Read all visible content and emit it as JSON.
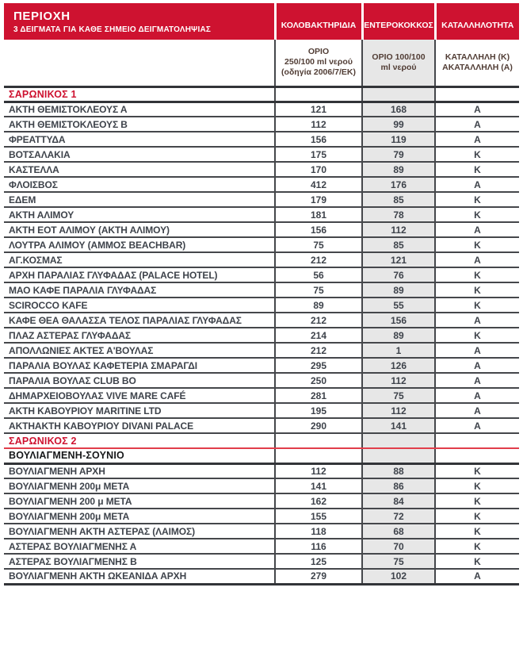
{
  "header": {
    "title": "ΠΕΡΙΟΧΗ",
    "subtitle": "3 ΔΕΙΓΜΑΤΑ ΓΙΑ ΚΑΘΕ ΣΗΜΕΙΟ ΔΕΙΓΜΑΤΟΛΗΨΙΑΣ",
    "columns": [
      "ΚΟΛΟΒΑΚΤΗΡΙΔΙΑ",
      "ΕΝΤΕΡΟΚΟΚΚΟΣ",
      "ΚΑΤΑΛΛΗΛΟΤΗΤΑ"
    ],
    "limits": {
      "coliform": [
        "ΟΡΙΟ",
        "250/100 ml νερού",
        "(οδηγία 2006/7/ΕΚ)"
      ],
      "enterococcus": [
        "ΟΡΙΟ 100/100",
        "ml νερού"
      ],
      "suitability": [
        "ΚΑΤΑΛΛΗΛΗ (Κ)",
        "ΑΚΑΤΑΛΛΗΛΗ (Α)"
      ]
    }
  },
  "colors": {
    "header_red": "#ce1230",
    "section_red_underline": "#e13e4b",
    "enterococcus_column_gray": "#e7e7e7",
    "row_border": "#45474b",
    "body_text": "#3e434b",
    "limit_text": "#513d35"
  },
  "rows": [
    {
      "type": "section-red",
      "name": "ΣΑΡΩΝΙΚΟΣ 1"
    },
    {
      "type": "data",
      "name": "ΑΚΤΗ ΘΕΜΙΣΤΟΚΛΕΟΥΣ Α",
      "coliform": "121",
      "enterococcus": "168",
      "suitability": "Α"
    },
    {
      "type": "data",
      "name": "ΑΚΤΗ ΘΕΜΙΣΤΟΚΛΕΟΥΣ Β",
      "coliform": "112",
      "enterococcus": "99",
      "suitability": "Α"
    },
    {
      "type": "data",
      "name": "ΦΡΕΑΤΤΥΔΑ",
      "coliform": "156",
      "enterococcus": "119",
      "suitability": "Α"
    },
    {
      "type": "data",
      "name": "ΒΟΤΣΑΛΑΚΙΑ",
      "coliform": "175",
      "enterococcus": "79",
      "suitability": "Κ"
    },
    {
      "type": "data",
      "name": "ΚΑΣΤΕΛΛΑ",
      "coliform": "170",
      "enterococcus": "89",
      "suitability": "Κ"
    },
    {
      "type": "data",
      "name": "ΦΛΟΙΣΒΟΣ",
      "coliform": "412",
      "enterococcus": "176",
      "suitability": "Α"
    },
    {
      "type": "data",
      "name": "ΕΔΕΜ",
      "coliform": "179",
      "enterococcus": "85",
      "suitability": "Κ"
    },
    {
      "type": "data",
      "name": "ΑΚΤΗ ΑΛΙΜΟΥ",
      "coliform": "181",
      "enterococcus": "78",
      "suitability": "Κ"
    },
    {
      "type": "data",
      "name": "ΑΚΤΗ ΕΟΤ ΑΛΙΜΟΥ (ΑΚΤΗ ΑΛΙΜΟΥ)",
      "coliform": "156",
      "enterococcus": "112",
      "suitability": "Α"
    },
    {
      "type": "data",
      "name": "ΛΟΥΤΡΑ ΑΛΙΜΟΥ (ΑΜΜΟΣ BEACHBAR)",
      "coliform": "75",
      "enterococcus": "85",
      "suitability": "Κ"
    },
    {
      "type": "data",
      "name": "ΑΓ.ΚΟΣΜΑΣ",
      "coliform": "212",
      "enterococcus": "121",
      "suitability": "Α"
    },
    {
      "type": "data",
      "name": "ΑΡΧΗ ΠΑΡΑΛΙΑΣ ΓΛΥΦΑΔΑΣ (PALACE HOTEL)",
      "coliform": "56",
      "enterococcus": "76",
      "suitability": "Κ"
    },
    {
      "type": "data",
      "name": "ΜΑΟ ΚΑΦΕ ΠΑΡΑΛΙΑ ΓΛΥΦΑΔΑΣ",
      "coliform": "75",
      "enterococcus": "89",
      "suitability": "Κ"
    },
    {
      "type": "data",
      "name": "SCIROCCO KAFE",
      "coliform": "89",
      "enterococcus": "55",
      "suitability": "Κ"
    },
    {
      "type": "data",
      "name": "ΚΑΦΕ ΘΕΑ ΘΑΛΑΣΣΑ ΤΕΛΟΣ ΠΑΡΑΛΙΑΣ ΓΛΥΦΑΔΑΣ",
      "coliform": "212",
      "enterococcus": "156",
      "suitability": "Α"
    },
    {
      "type": "data",
      "name": "ΠΛΑΖ ΑΣΤΕΡΑΣ ΓΛΥΦΑΔΑΣ",
      "coliform": "214",
      "enterococcus": "89",
      "suitability": "Κ"
    },
    {
      "type": "data",
      "name": "ΑΠΟΛΛΩΝΙΕΣ ΑΚΤΕΣ Α'ΒΟΥΛΑΣ",
      "coliform": "212",
      "enterococcus": "1",
      "suitability": "Α"
    },
    {
      "type": "data",
      "name": "ΠΑΡΑΛΙΑ ΒΟΥΛΑΣ ΚΑΦΕΤΕΡΙΑ ΣΜΑΡΑΓΔΙ",
      "coliform": "295",
      "enterococcus": "126",
      "suitability": "Α"
    },
    {
      "type": "data",
      "name": "ΠΑΡΑΛΙΑ ΒΟΥΛΑΣ CLUB BO",
      "coliform": "250",
      "enterococcus": "112",
      "suitability": "Α"
    },
    {
      "type": "data",
      "name": "ΔΗΜΑΡΧΕΙΟΒΟΥΛΑΣ VIVE MARE CAFÉ",
      "coliform": "281",
      "enterococcus": "75",
      "suitability": "Α"
    },
    {
      "type": "data",
      "name": "ΑΚΤΗ ΚΑΒΟΥΡΙΟΥ MARITINE LTD",
      "coliform": "195",
      "enterococcus": "112",
      "suitability": "Α"
    },
    {
      "type": "data",
      "name": "ΑΚΤΗΑΚΤΗ ΚΑΒΟΥΡΙΟΥ DIVANI PALACE",
      "coliform": "290",
      "enterococcus": "141",
      "suitability": "Α"
    },
    {
      "type": "section-red-underline",
      "name": "ΣΑΡΩΝΙΚΟΣ 2"
    },
    {
      "type": "section-bold",
      "name": "ΒΟΥΛΙΑΓΜΕΝΗ-ΣΟΥΝΙΟ"
    },
    {
      "type": "data",
      "name": "ΒΟΥΛΙΑΓΜΕΝΗ ΑΡΧΗ",
      "coliform": "112",
      "enterococcus": "88",
      "suitability": "Κ"
    },
    {
      "type": "data",
      "name": "ΒΟΥΛΙΑΓΜΕΝΗ 200μ ΜΕΤΑ",
      "coliform": "141",
      "enterococcus": "86",
      "suitability": "Κ"
    },
    {
      "type": "data",
      "name": "ΒΟΥΛΙΑΓΜΕΝΗ 200 μ ΜΕΤΑ",
      "coliform": "162",
      "enterococcus": "84",
      "suitability": "Κ"
    },
    {
      "type": "data",
      "name": "ΒΟΥΛΙΑΓΜΕΝΗ 200μ ΜΕΤΑ",
      "coliform": "155",
      "enterococcus": "72",
      "suitability": "Κ"
    },
    {
      "type": "data",
      "name": "ΒΟΥΛΙΑΓΜΕΝΗ ΑΚΤΗ ΑΣΤΕΡΑΣ (ΛΑΙΜΟΣ)",
      "coliform": "118",
      "enterococcus": "68",
      "suitability": "Κ"
    },
    {
      "type": "data",
      "name": "ΑΣΤΕΡΑΣ ΒΟΥΛΙΑΓΜΕΝΗΣ Α",
      "coliform": "116",
      "enterococcus": "70",
      "suitability": "Κ"
    },
    {
      "type": "data",
      "name": "ΑΣΤΕΡΑΣ ΒΟΥΛΙΑΓΜΕΝΗΣ Β",
      "coliform": "125",
      "enterococcus": "75",
      "suitability": "Κ"
    },
    {
      "type": "data",
      "name": "ΒΟΥΛΙΑΓΜΕΝΗ ΑΚΤΗ ΩΚΕΑΝΙΔΑ ΑΡΧΗ",
      "coliform": "279",
      "enterococcus": "102",
      "suitability": "Α"
    }
  ]
}
